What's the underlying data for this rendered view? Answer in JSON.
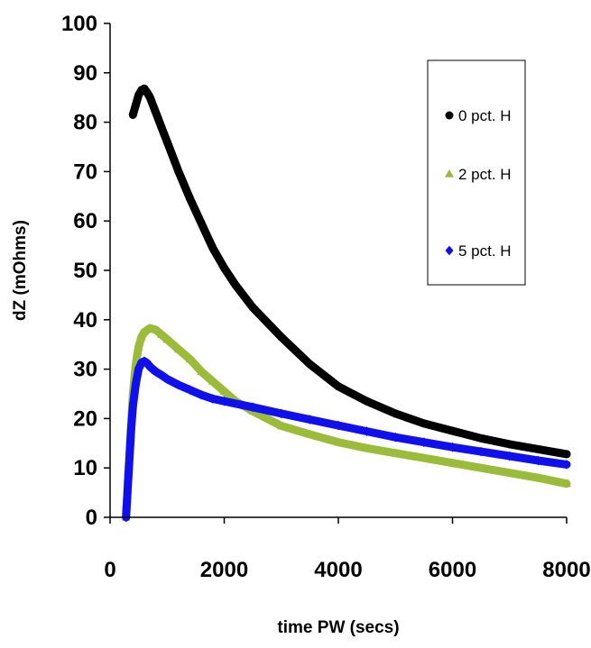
{
  "chart_data": {
    "type": "scatter",
    "xlabel": "time PW (secs)",
    "ylabel": "dZ (mOhms)",
    "xlim": [
      0,
      8000
    ],
    "ylim": [
      0,
      100
    ],
    "xticks": [
      0,
      2000,
      4000,
      6000,
      8000
    ],
    "yticks": [
      0,
      10,
      20,
      30,
      40,
      50,
      60,
      70,
      80,
      90,
      100
    ],
    "grid": false,
    "legend_position": "top-right",
    "series": [
      {
        "name": "0 pct. H",
        "color": "#000000",
        "marker": "circle",
        "x": [
          400,
          450,
          500,
          550,
          600,
          650,
          700,
          800,
          900,
          1000,
          1200,
          1400,
          1600,
          1800,
          2000,
          2200,
          2500,
          3000,
          3500,
          4000,
          4500,
          5000,
          5500,
          6000,
          6500,
          7000,
          7500,
          8000
        ],
        "y": [
          81.5,
          83.5,
          85.5,
          86.5,
          86.8,
          86.0,
          85.0,
          82.0,
          79.0,
          76.0,
          70.0,
          64.5,
          59.5,
          54.5,
          50.5,
          47.0,
          42.5,
          36.5,
          31.0,
          26.5,
          23.5,
          21.0,
          19.0,
          17.5,
          16.0,
          14.8,
          13.8,
          12.8
        ]
      },
      {
        "name": "2 pct. H",
        "color": "#9bbb3b",
        "marker": "triangle",
        "x": [
          280,
          320,
          360,
          400,
          450,
          500,
          550,
          600,
          700,
          800,
          900,
          1000,
          1200,
          1400,
          1600,
          1800,
          2000,
          2200,
          2500,
          3000,
          3500,
          4000,
          4500,
          5000,
          5500,
          6000,
          6500,
          7000,
          7500,
          8000
        ],
        "y": [
          0.0,
          9.0,
          17.0,
          25.0,
          31.0,
          34.5,
          36.5,
          37.5,
          38.3,
          38.0,
          37.0,
          36.0,
          34.0,
          32.0,
          29.5,
          27.5,
          25.5,
          23.5,
          21.5,
          18.5,
          16.8,
          15.2,
          14.0,
          13.0,
          12.0,
          11.0,
          10.0,
          9.0,
          8.0,
          6.8
        ]
      },
      {
        "name": "5 pct. H",
        "color": "#1010ee",
        "marker": "diamond",
        "x": [
          280,
          310,
          340,
          370,
          400,
          450,
          500,
          550,
          600,
          650,
          700,
          800,
          900,
          1000,
          1200,
          1400,
          1600,
          1800,
          2000,
          2500,
          3000,
          3500,
          4000,
          4500,
          5000,
          5500,
          6000,
          6500,
          7000,
          7500,
          8000
        ],
        "y": [
          0.0,
          6.0,
          12.0,
          18.0,
          22.5,
          27.0,
          30.0,
          31.3,
          31.6,
          31.2,
          30.5,
          29.5,
          28.8,
          28.0,
          26.8,
          25.8,
          24.8,
          24.0,
          23.5,
          22.3,
          21.0,
          19.8,
          18.6,
          17.4,
          16.2,
          15.2,
          14.2,
          13.3,
          12.4,
          11.5,
          10.7
        ]
      }
    ]
  }
}
